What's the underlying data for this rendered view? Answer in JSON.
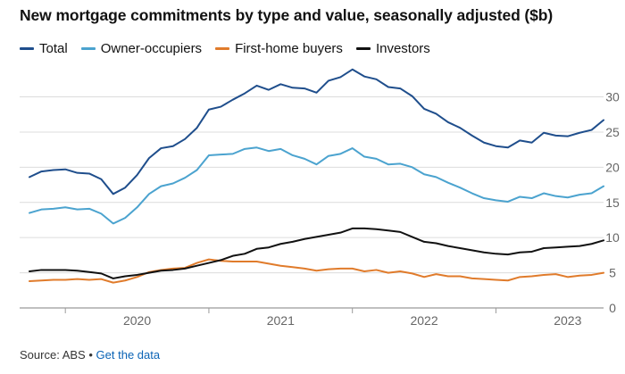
{
  "chart_data": {
    "type": "line",
    "title": "New mortgage commitments by type and value, seasonally adjusted ($b)",
    "xlabel": "",
    "ylabel": "",
    "xlim": [
      "2019-10",
      "2023-10"
    ],
    "ylim": [
      0,
      34
    ],
    "yticks": [
      0,
      5,
      10,
      15,
      20,
      25,
      30
    ],
    "xticks": [
      "2020",
      "2021",
      "2022",
      "2023"
    ],
    "x": [
      "2019-10",
      "2019-11",
      "2019-12",
      "2020-01",
      "2020-02",
      "2020-03",
      "2020-04",
      "2020-05",
      "2020-06",
      "2020-07",
      "2020-08",
      "2020-09",
      "2020-10",
      "2020-11",
      "2020-12",
      "2021-01",
      "2021-02",
      "2021-03",
      "2021-04",
      "2021-05",
      "2021-06",
      "2021-07",
      "2021-08",
      "2021-09",
      "2021-10",
      "2021-11",
      "2021-12",
      "2022-01",
      "2022-02",
      "2022-03",
      "2022-04",
      "2022-05",
      "2022-06",
      "2022-07",
      "2022-08",
      "2022-09",
      "2022-10",
      "2022-11",
      "2022-12",
      "2023-01",
      "2023-02",
      "2023-03",
      "2023-04",
      "2023-05",
      "2023-06",
      "2023-07",
      "2023-08",
      "2023-09",
      "2023-10"
    ],
    "grid": "horizontal",
    "legend_position": "top",
    "series": [
      {
        "name": "Total",
        "color": "#1f4e8c",
        "values": [
          18.6,
          19.4,
          19.6,
          19.7,
          19.2,
          19.1,
          18.3,
          16.2,
          17.1,
          18.9,
          21.3,
          22.7,
          23.0,
          24.0,
          25.6,
          28.2,
          28.6,
          29.6,
          30.5,
          31.6,
          31.0,
          31.8,
          31.3,
          31.2,
          30.6,
          32.3,
          32.8,
          33.9,
          32.9,
          32.5,
          31.4,
          31.2,
          30.1,
          28.3,
          27.6,
          26.4,
          25.6,
          24.5,
          23.5,
          23.0,
          22.8,
          23.8,
          23.5,
          24.9,
          24.5,
          24.4,
          24.9,
          25.3,
          26.7
        ]
      },
      {
        "name": "Owner-occupiers",
        "color": "#4ba3cf",
        "values": [
          13.5,
          14.0,
          14.1,
          14.3,
          14.0,
          14.1,
          13.4,
          12.0,
          12.8,
          14.3,
          16.2,
          17.3,
          17.7,
          18.5,
          19.6,
          21.7,
          21.8,
          21.9,
          22.6,
          22.8,
          22.3,
          22.6,
          21.7,
          21.2,
          20.4,
          21.6,
          21.9,
          22.7,
          21.5,
          21.2,
          20.4,
          20.5,
          20.0,
          19.0,
          18.6,
          17.8,
          17.1,
          16.3,
          15.6,
          15.3,
          15.1,
          15.8,
          15.6,
          16.3,
          15.9,
          15.7,
          16.1,
          16.3,
          17.3
        ]
      },
      {
        "name": "First-home buyers",
        "color": "#e07b2b",
        "values": [
          3.8,
          3.9,
          4.0,
          4.0,
          4.1,
          4.0,
          4.1,
          3.6,
          3.9,
          4.4,
          5.1,
          5.4,
          5.6,
          5.7,
          6.4,
          6.9,
          6.7,
          6.6,
          6.6,
          6.6,
          6.3,
          6.0,
          5.8,
          5.6,
          5.3,
          5.5,
          5.6,
          5.6,
          5.2,
          5.4,
          5.0,
          5.2,
          4.9,
          4.4,
          4.8,
          4.5,
          4.5,
          4.2,
          4.1,
          4.0,
          3.9,
          4.4,
          4.5,
          4.7,
          4.8,
          4.4,
          4.6,
          4.7,
          5.0
        ]
      },
      {
        "name": "Investors",
        "color": "#111111",
        "values": [
          5.2,
          5.4,
          5.4,
          5.4,
          5.3,
          5.1,
          4.9,
          4.2,
          4.5,
          4.7,
          5.0,
          5.3,
          5.4,
          5.6,
          6.0,
          6.4,
          6.8,
          7.4,
          7.7,
          8.4,
          8.6,
          9.1,
          9.4,
          9.8,
          10.1,
          10.4,
          10.7,
          11.3,
          11.3,
          11.2,
          11.0,
          10.8,
          10.1,
          9.4,
          9.2,
          8.8,
          8.5,
          8.2,
          7.9,
          7.7,
          7.6,
          7.9,
          8.0,
          8.5,
          8.6,
          8.7,
          8.8,
          9.1,
          9.6
        ]
      }
    ]
  },
  "legend": {
    "items": [
      {
        "label": "Total",
        "color": "#1f4e8c"
      },
      {
        "label": "Owner-occupiers",
        "color": "#4ba3cf"
      },
      {
        "label": "First-home buyers",
        "color": "#e07b2b"
      },
      {
        "label": "Investors",
        "color": "#111111"
      }
    ]
  },
  "footer": {
    "source": "Source: ABS",
    "separator": "•",
    "link": "Get the data"
  },
  "colors": {
    "gridline": "#dcdcdc",
    "axis_label": "#666666",
    "link": "#0a63b5"
  }
}
